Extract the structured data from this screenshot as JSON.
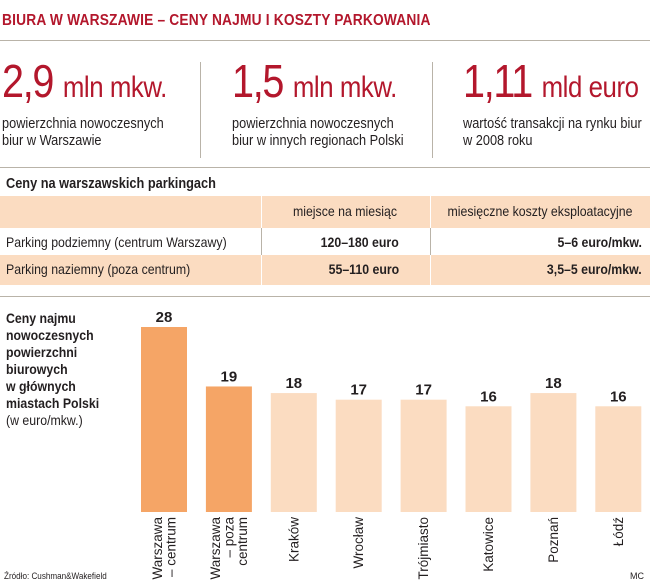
{
  "title": "BIURA W WARSZAWIE – CENY NAJMU I KOSZTY PARKOWANIA",
  "stats": [
    {
      "value": "2,9",
      "unit": "mln mkw.",
      "line1": "powierzchnia nowoczesnych",
      "line2": "biur w Warszawie"
    },
    {
      "value": "1,5",
      "unit": "mln mkw.",
      "line1": "powierzchnia nowoczesnych",
      "line2": "biur w innych regionach Polski"
    },
    {
      "value": "1,11",
      "unit": "mld euro",
      "line1": "wartość transakcji na rynku biur",
      "line2": "w 2008 roku"
    }
  ],
  "parking": {
    "title": "Ceny na warszawskich parkingach",
    "headers": [
      "miejsce na miesiąc",
      "miesięczne koszty eksploatacyjne"
    ],
    "rows": [
      {
        "name": "Parking podziemny (centrum Warszawy)",
        "price": "120–180 euro",
        "cost": "5–6 euro/mkw."
      },
      {
        "name": "Parking naziemny (poza centrum)",
        "price": "55–110 euro",
        "cost": "3,5–5 euro/mkw."
      }
    ]
  },
  "chart_label": {
    "bold_lines": [
      "Ceny najmu",
      "nowoczesnych",
      "powierzchni",
      "biurowych",
      "w głównych",
      "miastach Polski"
    ],
    "unit_line": "(w euro/mkw.)"
  },
  "chart_data": {
    "type": "bar",
    "categories": [
      "Warszawa – centrum",
      "Warszawa – poza centrum",
      "Kraków",
      "Wrocław",
      "Trójmiasto",
      "Katowice",
      "Poznań",
      "Łódź"
    ],
    "category_lines": [
      [
        "Warszawa",
        "– centrum"
      ],
      [
        "Warszawa",
        "– poza",
        "centrum"
      ],
      [
        "Kraków"
      ],
      [
        "Wrocław"
      ],
      [
        "Trójmiasto"
      ],
      [
        "Katowice"
      ],
      [
        "Poznań"
      ],
      [
        "Łódź"
      ]
    ],
    "values": [
      28,
      19,
      18,
      17,
      17,
      16,
      18,
      16
    ],
    "data_labels": [
      "28",
      "19",
      "18",
      "17",
      "17",
      "16",
      "18",
      "16"
    ],
    "colors": [
      "#f5a566",
      "#f5a566",
      "#fbdcc1",
      "#fbdcc1",
      "#fbdcc1",
      "#fbdcc1",
      "#fbdcc1",
      "#fbdcc1"
    ],
    "title": "",
    "xlabel": "",
    "ylabel": "",
    "ylim": [
      0,
      28
    ],
    "grid": false,
    "legend": "none"
  },
  "source": "Źródło: Cushman&Wakefield",
  "credit": "MC",
  "colors": {
    "accent": "#b3172c",
    "band": "#fbdcc1",
    "bar_highlight": "#f5a566"
  }
}
